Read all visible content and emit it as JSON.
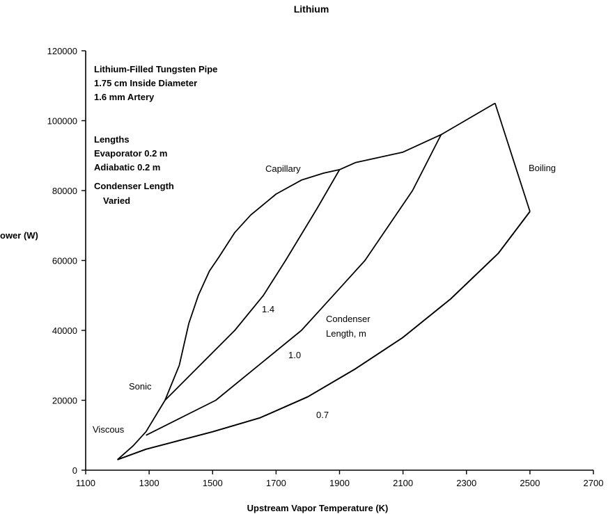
{
  "chart_data": {
    "type": "line",
    "title": "Lithium",
    "xlabel": "Upstream Vapor Temperature (K)",
    "ylabel": "ower (W)",
    "xlim": [
      1100,
      2700
    ],
    "ylim": [
      0,
      120000
    ],
    "xticks": [
      1100,
      1300,
      1500,
      1700,
      1900,
      2100,
      2300,
      2500,
      2700
    ],
    "yticks": [
      0,
      20000,
      40000,
      60000,
      80000,
      100000,
      120000
    ],
    "grid": false,
    "info_lines": [
      "Lithium-Filled Tungsten Pipe",
      "1.75 cm Inside Diameter",
      "1.6 mm Artery",
      "Lengths",
      "Evaporator 0.2 m",
      "Adiabatic 0.2 m",
      "Condenser Length",
      "Varied"
    ],
    "series": [
      {
        "label": "Capillary",
        "x": [
          1900,
          1950,
          2000,
          2100,
          2220,
          2390
        ],
        "y": [
          86000,
          88000,
          89000,
          91000,
          96000,
          105000
        ]
      },
      {
        "label": "Sonic",
        "x": [
          1200,
          1250,
          1290,
          1350,
          1395,
          1425,
          1455,
          1490,
          1520,
          1570,
          1620,
          1700,
          1780,
          1850,
          1900
        ],
        "y": [
          3000,
          7000,
          11000,
          20000,
          30000,
          42000,
          50000,
          57000,
          61000,
          68000,
          73000,
          79000,
          83000,
          85000,
          86000
        ]
      },
      {
        "label": "Boiling",
        "x": [
          2390,
          2500
        ],
        "y": [
          105000,
          74000
        ]
      },
      {
        "label": "Viscous",
        "x": [
          1200,
          1290,
          1500,
          1650,
          1800,
          1950,
          2100,
          2250,
          2400,
          2500
        ],
        "y": [
          3000,
          6000,
          11000,
          15000,
          21000,
          29000,
          38000,
          49000,
          62000,
          74000
        ]
      },
      {
        "label": "1.4",
        "x": [
          1350,
          1460,
          1570,
          1660,
          1730,
          1830,
          1900
        ],
        "y": [
          20000,
          30000,
          40000,
          50000,
          60000,
          75000,
          86000
        ]
      },
      {
        "label": "1.0",
        "x": [
          1290,
          1510,
          1780,
          1880,
          1980,
          2130,
          2220
        ],
        "y": [
          10000,
          20000,
          40000,
          50000,
          60000,
          80000,
          96000
        ]
      },
      {
        "label": "0.7",
        "x": [
          1200,
          1290,
          1500,
          1650,
          1800,
          1950,
          2100,
          2250,
          2400,
          2500
        ],
        "y": [
          3000,
          6000,
          11000,
          15000,
          21000,
          29000,
          38000,
          49000,
          62000,
          74000
        ]
      }
    ],
    "annotations": {
      "capillary": "Capillary",
      "boiling": "Boiling",
      "sonic": "Sonic",
      "viscous": "Viscous",
      "l14": "1.4",
      "l10": "1.0",
      "l07": "0.7",
      "condenser1": "Condenser",
      "condenser2": "Length, m"
    }
  }
}
